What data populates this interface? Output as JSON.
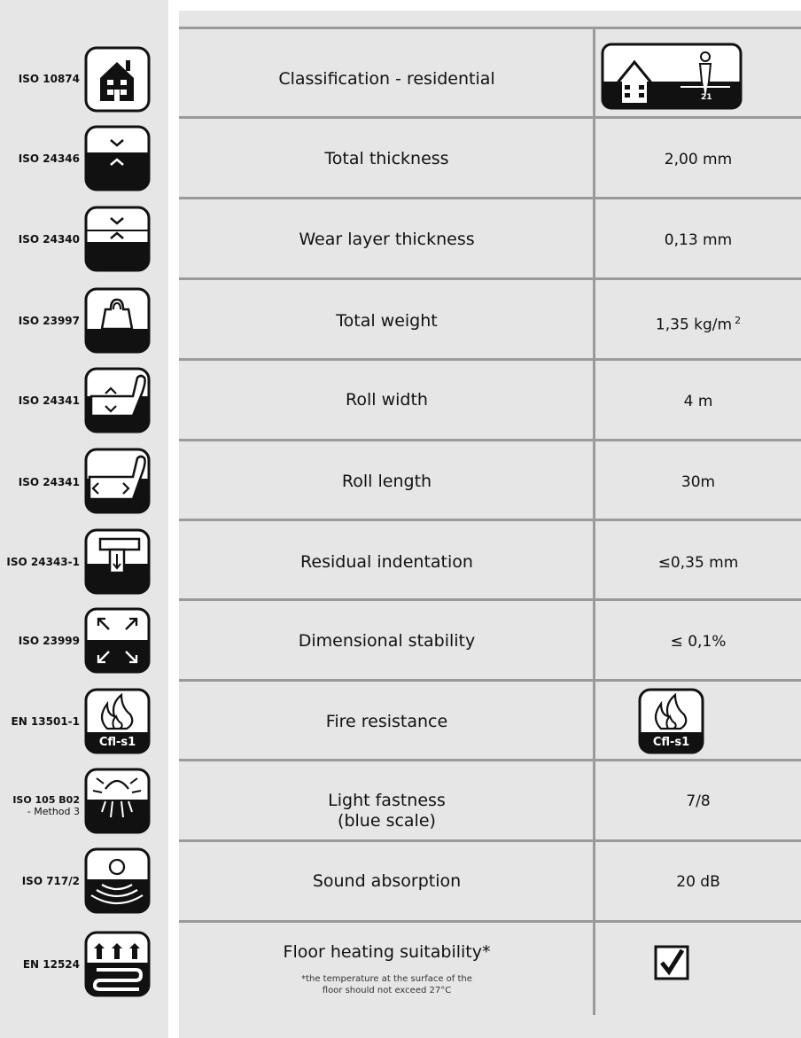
{
  "rows": [
    {
      "standard": "ISO 10874",
      "icon": "house-icon",
      "property": "Classification - residential",
      "value": "",
      "value_icon": "residential-class-21-icon",
      "value_badge": "21"
    },
    {
      "standard": "ISO 24346",
      "icon": "total-thickness-icon",
      "property": "Total thickness",
      "value": "2,00 mm"
    },
    {
      "standard": "ISO 24340",
      "icon": "wear-layer-thickness-icon",
      "property": "Wear layer thickness",
      "value": "0,13 mm"
    },
    {
      "standard": "ISO 23997",
      "icon": "weight-icon",
      "property": "Total weight",
      "value": "1,35 kg/m",
      "value_sup": "2"
    },
    {
      "standard": "ISO 24341",
      "icon": "roll-width-icon",
      "property": "Roll width",
      "value": "4 m"
    },
    {
      "standard": "ISO 24341",
      "icon": "roll-length-icon",
      "property": "Roll length",
      "value": "30m"
    },
    {
      "standard": "ISO 24343-1",
      "icon": "residual-indentation-icon",
      "property": "Residual indentation",
      "value": "≤0,35 mm"
    },
    {
      "standard": "ISO 23999",
      "icon": "dimensional-stability-icon",
      "property": "Dimensional stability",
      "value": "≤ 0,1%"
    },
    {
      "standard": "EN 13501-1",
      "icon": "fire-icon",
      "icon_label": "Cfl-s1",
      "property": "Fire resistance",
      "value": "",
      "value_icon": "fire-class-icon",
      "value_label": "Cfl-s1"
    },
    {
      "standard_line1": "ISO 105 B02",
      "standard_line2": "- Method 3",
      "icon": "light-fastness-icon",
      "property_line1": "Light fastness",
      "property_line2": "(blue scale)",
      "value": "7/8"
    },
    {
      "standard": "ISO 717/2",
      "icon": "sound-absorption-icon",
      "property": "Sound absorption",
      "value": "20 dB"
    },
    {
      "standard": "EN 12524",
      "icon": "floor-heating-icon",
      "property": "Floor heating suitability*",
      "note_line1": "*the temperature at the surface of the",
      "note_line2": "floor should not exceed 27°C",
      "value": "",
      "value_icon": "checkbox-checked-icon"
    }
  ],
  "colors": {
    "panel": "#e6e6e6",
    "divider": "#9a9a9a",
    "icon_dark": "#111111"
  }
}
